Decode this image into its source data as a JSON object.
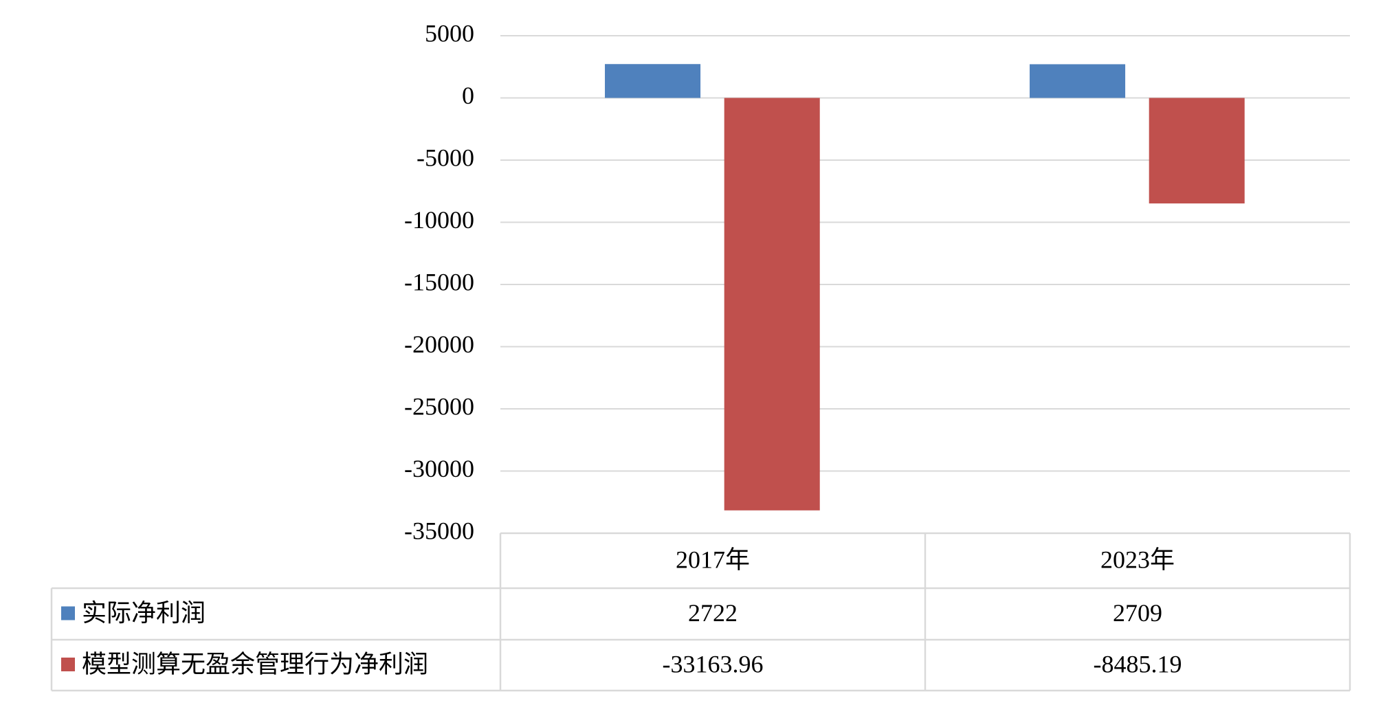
{
  "chart_data": {
    "type": "bar",
    "categories": [
      "2017年",
      "2023年"
    ],
    "series": [
      {
        "name": "实际净利润",
        "color": "#4f81bd",
        "values": [
          2722,
          2709
        ]
      },
      {
        "name": "模型测算无盈余管理行为净利润",
        "color": "#c0504d",
        "values": [
          -33163.96,
          -8485.19
        ]
      }
    ],
    "ylim": [
      -35000,
      5000
    ],
    "yticks": [
      -35000,
      -30000,
      -25000,
      -20000,
      -15000,
      -10000,
      -5000,
      0,
      5000
    ],
    "grid": true,
    "data_table": true
  }
}
